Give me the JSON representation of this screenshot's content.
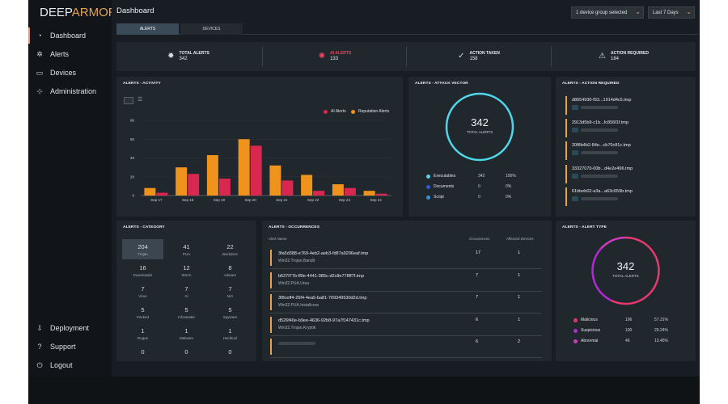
{
  "brand": {
    "logo_prefix": "DEEP",
    "logo_suffix": "ARMOR",
    "reg": "®"
  },
  "nav": {
    "items": [
      {
        "label": "Dashboard",
        "icon": "dashboard-icon"
      },
      {
        "label": "Alerts",
        "icon": "alerts-icon"
      },
      {
        "label": "Devices",
        "icon": "devices-icon"
      },
      {
        "label": "Administration",
        "icon": "administration-icon"
      }
    ],
    "bottom": [
      {
        "label": "Deployment",
        "icon": "deployment-icon"
      },
      {
        "label": "Support",
        "icon": "support-icon"
      },
      {
        "label": "Logout",
        "icon": "logout-icon"
      }
    ]
  },
  "header": {
    "title": "Dashboard",
    "device_group": "1 device group selected",
    "range": "Last 7 Days"
  },
  "tabs": [
    "ALERTS",
    "DEVICES"
  ],
  "stats": [
    {
      "label": "TOTAL ALERTS",
      "value": "342",
      "icon": "shield-icon"
    },
    {
      "label": "AI ALERTS",
      "value": "133",
      "icon": "ai-alert-icon",
      "color": "#e8475f"
    },
    {
      "label": "ACTION TAKEN",
      "value": "158",
      "icon": "check-circle-icon"
    },
    {
      "label": "ACTION REQUIRED",
      "value": "184",
      "icon": "warning-icon"
    }
  ],
  "activity": {
    "title": "ALERTS - ACTIVITY",
    "legend": [
      "AI Alerts",
      "Reputation Alerts"
    ]
  },
  "chart_data": {
    "type": "bar",
    "categories": [
      "Sep 17",
      "Sep 18",
      "Sep 19",
      "Sep 20",
      "Sep 21",
      "Sep 22",
      "Sep 23",
      "Sep 24"
    ],
    "series": [
      {
        "name": "Reputation Alerts",
        "color": "#f0931c",
        "values": [
          8,
          30,
          43,
          60,
          32,
          22,
          12,
          5
        ]
      },
      {
        "name": "AI Alerts",
        "color": "#d8284f",
        "values": [
          3,
          23,
          18,
          53,
          16,
          5,
          8,
          2
        ]
      }
    ],
    "yticks": [
      "0",
      "20",
      "40",
      "60",
      "80"
    ],
    "ylim": [
      0,
      80
    ],
    "title": "",
    "xlabel": "",
    "ylabel": "",
    "legend_position": "top-right"
  },
  "vector": {
    "title": "ALERTS - ATTACK VECTOR",
    "total": "342",
    "total_label": "TOTAL ALERTS",
    "rows": [
      {
        "label": "Executables",
        "count": "342",
        "pct": "100%",
        "color": "#4fd6ea"
      },
      {
        "label": "Documents",
        "count": "0",
        "pct": "0%",
        "color": "#2a5bd8"
      },
      {
        "label": "Script",
        "count": "0",
        "pct": "0%",
        "color": "#2e93e6"
      }
    ]
  },
  "action_required": {
    "title": "ALERTS - ACTION REQUIRED",
    "items": [
      "d8654930-f53...1914d4c5.tmp",
      "2913d5b9-c1b...fc856f1f.tmp",
      "20f8b4b2-84e...cb70c81c.tmp",
      "33327070-00b...d4e2e496.tmp",
      "61bbeb02-a3a...a63c659b.tmp"
    ]
  },
  "category": {
    "title": "ALERTS - CATEGORY",
    "cells": [
      {
        "n": "204",
        "l": "Trojan"
      },
      {
        "n": "41",
        "l": "PUA"
      },
      {
        "n": "22",
        "l": "Backdoor"
      },
      {
        "n": "16",
        "l": "Downloader"
      },
      {
        "n": "12",
        "l": "Worm"
      },
      {
        "n": "8",
        "l": "Adware"
      },
      {
        "n": "7",
        "l": "Virus"
      },
      {
        "n": "7",
        "l": "AI"
      },
      {
        "n": "7",
        "l": "N/A"
      },
      {
        "n": "5",
        "l": "Packed"
      },
      {
        "n": "5",
        "l": "Infostealer"
      },
      {
        "n": "5",
        "l": "Spyware"
      },
      {
        "n": "1",
        "l": "Rogue"
      },
      {
        "n": "1",
        "l": "Malware"
      },
      {
        "n": "1",
        "l": "Hacktool"
      },
      {
        "n": "0",
        "l": ""
      },
      {
        "n": "0",
        "l": ""
      },
      {
        "n": "0",
        "l": ""
      }
    ]
  },
  "occurrences": {
    "title": "ALERTS - OCCURRENCES",
    "col_name": "Alert Name",
    "col_occ": "Occurrences",
    "col_aff": "Affected Devices",
    "rows": [
      {
        "hash": "3fa5d388-e769-4eb2-aeb3-fd87a9296eaf.tmp",
        "name": "Win32.Trojan.Bandit",
        "occ": "17",
        "aff": "1"
      },
      {
        "hash": "b627f77b-ff9e-4441-985c-d2c8e778ff7f.tmp",
        "name": "Win32.PUA.Urea",
        "occ": "7",
        "aff": "1"
      },
      {
        "hash": "3f8ceff4-25f4-4ea5-ba81-709349530d2d.tmp",
        "name": "Win32.PUA.Installcore",
        "occ": "7",
        "aff": "1"
      },
      {
        "hash": "d526f40e-b9ee-4636-92b8-97a7f147431c.tmp",
        "name": "Win32.Trojan.Kryptik",
        "occ": "6",
        "aff": "1"
      },
      {
        "hash": "",
        "name": "",
        "occ": "6",
        "aff": "2"
      }
    ]
  },
  "type": {
    "title": "ALERTS - ALERT TYPE",
    "total": "342",
    "total_label": "TOTAL ALERTS",
    "rows": [
      {
        "label": "Malicious",
        "count": "196",
        "pct": "57.31%",
        "color": "#e8386e"
      },
      {
        "label": "Suspicious",
        "count": "100",
        "pct": "29.24%",
        "color": "#b22bd2"
      },
      {
        "label": "Abnormal",
        "count": "46",
        "pct": "13.45%",
        "color": "#d03bbf"
      }
    ]
  }
}
